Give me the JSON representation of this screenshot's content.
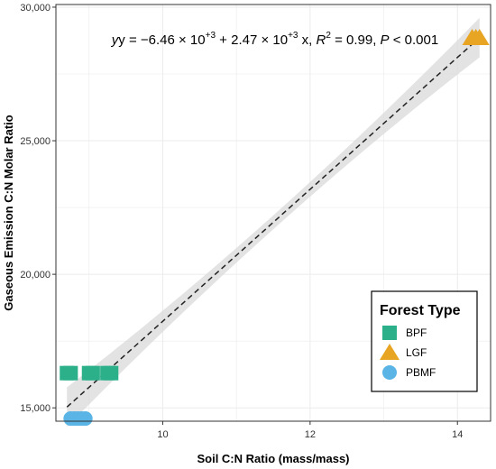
{
  "chart_data": {
    "type": "scatter",
    "xlabel": "Soil C:N Ratio (mass/mass)",
    "ylabel": "Gaseous Emission C:N Molar Ratio",
    "xlim": [
      8.55,
      14.45
    ],
    "ylim": [
      14500,
      30100
    ],
    "x_ticks": [
      10,
      12,
      14
    ],
    "x_tick_labels": [
      "10",
      "12",
      "14"
    ],
    "y_ticks": [
      15000,
      20000,
      25000,
      30000
    ],
    "y_tick_labels": [
      "15,000",
      "20,000",
      "25,000",
      "30,000"
    ],
    "grid": true,
    "equation": {
      "part1": "y = −6.46 × 10",
      "sup1": "+3",
      "part2": " + 2.47 × 10",
      "sup2": "+3",
      "part3": " x, ",
      "r2_r": "R",
      "r2_sup": "2",
      "part4": " = 0.99, ",
      "p_p": "P",
      "part5": " < 0.001"
    },
    "regression": {
      "intercept": -6460,
      "slope": 2470,
      "x_range": [
        8.7,
        14.3
      ]
    },
    "legend": {
      "title": "Forest Type",
      "position": "bottom-right"
    },
    "series": [
      {
        "name": "BPF",
        "marker": "square",
        "color": "#2bb08a",
        "points": [
          [
            8.7,
            16300
          ],
          [
            8.75,
            16300
          ],
          [
            9.0,
            16300
          ],
          [
            9.05,
            16300
          ],
          [
            9.25,
            16300
          ],
          [
            9.3,
            16300
          ]
        ]
      },
      {
        "name": "LGF",
        "marker": "triangle",
        "color": "#e8a523",
        "points": [
          [
            14.2,
            28850
          ],
          [
            14.25,
            28850
          ],
          [
            14.3,
            28850
          ]
        ]
      },
      {
        "name": "PBMF",
        "marker": "circle",
        "color": "#5ab4e5",
        "points": [
          [
            8.75,
            14600
          ],
          [
            8.8,
            14600
          ],
          [
            8.85,
            14600
          ],
          [
            8.9,
            14600
          ],
          [
            8.95,
            14600
          ]
        ]
      }
    ]
  }
}
